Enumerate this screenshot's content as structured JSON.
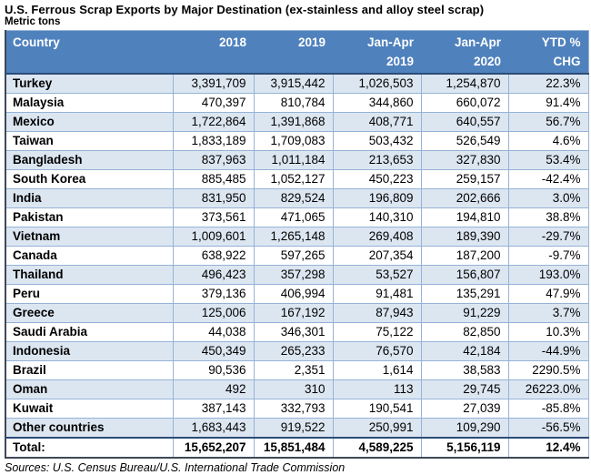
{
  "title": "U.S. Ferrous Scrap Exports by Major Destination (ex-stainless and alloy steel scrap)",
  "subtitle": "Metric tons",
  "source_note": "Sources: U.S. Census Bureau/U.S. International Trade Commission",
  "colors": {
    "header_bg": "#4F81BD",
    "banded_row_bg": "#DCE6F1",
    "grid_border": "#95B3D7",
    "dark_border": "#2B4C77",
    "header_text": "#FFFFFF"
  },
  "chart_data": {
    "type": "table",
    "title": "U.S. Ferrous Scrap Exports by Major Destination (ex-stainless and alloy steel scrap)",
    "units": "Metric tons",
    "header": [
      {
        "line1": "Country",
        "line2": ""
      },
      {
        "line1": "2018",
        "line2": ""
      },
      {
        "line1": "2019",
        "line2": ""
      },
      {
        "line1": "Jan-Apr",
        "line2": "2019"
      },
      {
        "line1": "Jan-Apr",
        "line2": "2020"
      },
      {
        "line1": "YTD %",
        "line2": "CHG"
      }
    ],
    "column_keys": [
      "country",
      "y2018",
      "y2019",
      "jan-apr-2019",
      "jan-apr-2020",
      "ytd-pct-chg"
    ],
    "rows": [
      [
        "Turkey",
        "3,391,709",
        "3,915,442",
        "1,026,503",
        "1,254,870",
        "22.3%"
      ],
      [
        "Malaysia",
        "470,397",
        "810,784",
        "344,860",
        "660,072",
        "91.4%"
      ],
      [
        "Mexico",
        "1,722,864",
        "1,391,868",
        "408,771",
        "640,557",
        "56.7%"
      ],
      [
        "Taiwan",
        "1,833,189",
        "1,709,083",
        "503,432",
        "526,549",
        "4.6%"
      ],
      [
        "Bangladesh",
        "837,963",
        "1,011,184",
        "213,653",
        "327,830",
        "53.4%"
      ],
      [
        "South Korea",
        "885,485",
        "1,052,127",
        "450,223",
        "259,157",
        "-42.4%"
      ],
      [
        "India",
        "831,950",
        "829,524",
        "196,809",
        "202,666",
        "3.0%"
      ],
      [
        "Pakistan",
        "373,561",
        "471,065",
        "140,310",
        "194,810",
        "38.8%"
      ],
      [
        "Vietnam",
        "1,009,601",
        "1,265,148",
        "269,408",
        "189,390",
        "-29.7%"
      ],
      [
        "Canada",
        "638,922",
        "597,265",
        "207,354",
        "187,200",
        "-9.7%"
      ],
      [
        "Thailand",
        "496,423",
        "357,298",
        "53,527",
        "156,807",
        "193.0%"
      ],
      [
        "Peru",
        "379,136",
        "406,994",
        "91,481",
        "135,291",
        "47.9%"
      ],
      [
        "Greece",
        "125,006",
        "167,192",
        "87,943",
        "91,229",
        "3.7%"
      ],
      [
        "Saudi Arabia",
        "44,038",
        "346,301",
        "75,122",
        "82,850",
        "10.3%"
      ],
      [
        "Indonesia",
        "450,349",
        "265,233",
        "76,570",
        "42,184",
        "-44.9%"
      ],
      [
        "Brazil",
        "90,536",
        "2,351",
        "1,614",
        "38,583",
        "2290.5%"
      ],
      [
        "Oman",
        "492",
        "310",
        "113",
        "29,745",
        "26223.0%"
      ],
      [
        "Kuwait",
        "387,143",
        "332,793",
        "190,541",
        "27,039",
        "-85.8%"
      ],
      [
        "Other countries",
        "1,683,443",
        "919,522",
        "250,991",
        "109,290",
        "-56.5%"
      ]
    ],
    "total_row": [
      "Total:",
      "15,652,207",
      "15,851,484",
      "4,589,225",
      "5,156,119",
      "12.4%"
    ]
  }
}
